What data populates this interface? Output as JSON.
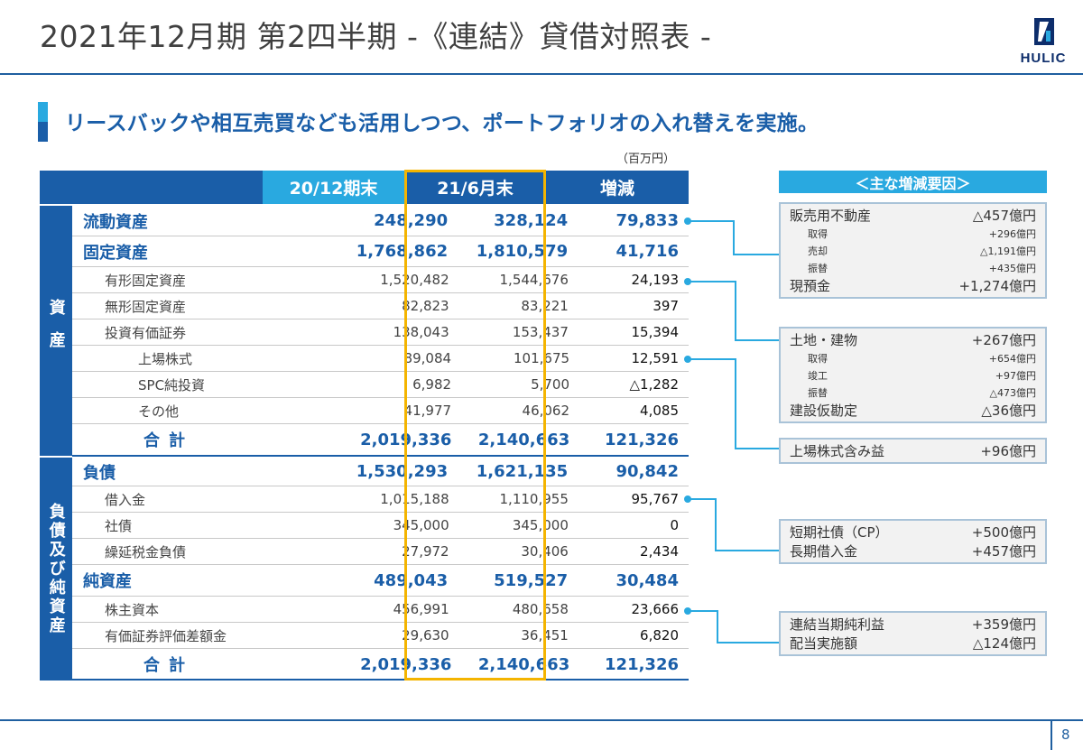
{
  "page": {
    "title": "2021年12月期  第2四半期  -《連結》貸借対照表 -",
    "headline": "リースバックや相互売買なども活用しつつ、ポートフォリオの入れ替えを実施。",
    "unit": "（百万円）",
    "page_number": "8"
  },
  "logo": {
    "text": "HULIC"
  },
  "colors": {
    "navy": "#1a5ea8",
    "cyan": "#29a9e0",
    "gold": "#f4b400"
  },
  "table": {
    "headers": [
      "",
      "20/12期末",
      "21/6月末",
      "増減"
    ],
    "side_assets": "資産",
    "side_liabilities": "負債及び純資産",
    "assets": [
      {
        "label": "流動資産",
        "c1": "248,290",
        "c2": "328,124",
        "c3": "79,833",
        "kind": "major"
      },
      {
        "label": "固定資産",
        "c1": "1,768,862",
        "c2": "1,810,579",
        "c3": "41,716",
        "kind": "major"
      },
      {
        "label": "有形固定資産",
        "c1": "1,520,482",
        "c2": "1,544,676",
        "c3": "24,193",
        "kind": "sub"
      },
      {
        "label": "無形固定資産",
        "c1": "82,823",
        "c2": "83,221",
        "c3": "397",
        "kind": "sub"
      },
      {
        "label": "投資有価証券",
        "c1": "138,043",
        "c2": "153,437",
        "c3": "15,394",
        "kind": "sub"
      },
      {
        "label": "上場株式",
        "c1": "89,084",
        "c2": "101,675",
        "c3": "12,591",
        "kind": "sub2"
      },
      {
        "label": "SPC純投資",
        "c1": "6,982",
        "c2": "5,700",
        "c3": "△1,282",
        "kind": "sub2"
      },
      {
        "label": "その他",
        "c1": "41,977",
        "c2": "46,062",
        "c3": "4,085",
        "kind": "sub2"
      },
      {
        "label": "合計",
        "c1": "2,019,336",
        "c2": "2,140,663",
        "c3": "121,326",
        "kind": "total"
      }
    ],
    "liabilities": [
      {
        "label": "負債",
        "c1": "1,530,293",
        "c2": "1,621,135",
        "c3": "90,842",
        "kind": "major"
      },
      {
        "label": "借入金",
        "c1": "1,015,188",
        "c2": "1,110,955",
        "c3": "95,767",
        "kind": "sub"
      },
      {
        "label": "社債",
        "c1": "345,000",
        "c2": "345,000",
        "c3": "0",
        "kind": "sub"
      },
      {
        "label": "繰延税金負債",
        "c1": "27,972",
        "c2": "30,406",
        "c3": "2,434",
        "kind": "sub"
      },
      {
        "label": "純資産",
        "c1": "489,043",
        "c2": "519,527",
        "c3": "30,484",
        "kind": "major"
      },
      {
        "label": "株主資本",
        "c1": "456,991",
        "c2": "480,658",
        "c3": "23,666",
        "kind": "sub"
      },
      {
        "label": "有価証券評価差額金",
        "c1": "29,630",
        "c2": "36,451",
        "c3": "6,820",
        "kind": "sub"
      },
      {
        "label": "合計",
        "c1": "2,019,336",
        "c2": "2,140,663",
        "c3": "121,326",
        "kind": "total"
      }
    ]
  },
  "factors": {
    "title": "＜主な増減要因＞",
    "box1": [
      {
        "label": "販売用不動産",
        "value": "△457億円",
        "size": "main"
      },
      {
        "label": "取得",
        "value": "+296億円",
        "size": "small"
      },
      {
        "label": "売却",
        "value": "△1,191億円",
        "size": "small"
      },
      {
        "label": "振替",
        "value": "+435億円",
        "size": "small"
      },
      {
        "label": "現預金",
        "value": "+1,274億円",
        "size": "main"
      }
    ],
    "box2": [
      {
        "label": "土地・建物",
        "value": "+267億円",
        "size": "main"
      },
      {
        "label": "取得",
        "value": "+654億円",
        "size": "small"
      },
      {
        "label": "竣工",
        "value": "+97億円",
        "size": "small"
      },
      {
        "label": "振替",
        "value": "△473億円",
        "size": "small"
      },
      {
        "label": "建設仮勘定",
        "value": "△36億円",
        "size": "main"
      }
    ],
    "box3": [
      {
        "label": "上場株式含み益",
        "value": "+96億円",
        "size": "main"
      }
    ],
    "box4": [
      {
        "label": "短期社債（CP）",
        "value": "+500億円",
        "size": "main"
      },
      {
        "label": "長期借入金",
        "value": "+457億円",
        "size": "main"
      }
    ],
    "box5": [
      {
        "label": "連結当期純利益",
        "value": "+359億円",
        "size": "main"
      },
      {
        "label": "配当実施額",
        "value": "△124億円",
        "size": "main"
      }
    ]
  }
}
